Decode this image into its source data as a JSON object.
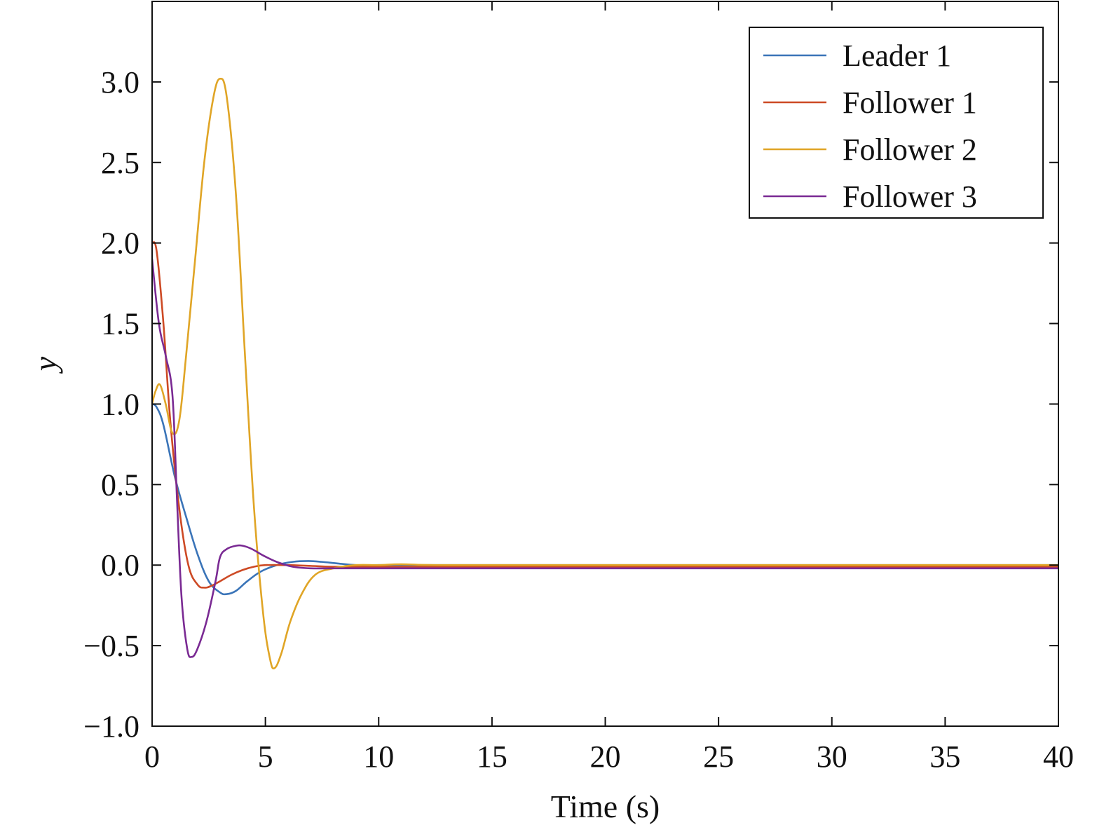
{
  "chart_data": {
    "type": "line",
    "title": "",
    "xlabel": "Time (s)",
    "ylabel": "y",
    "xlim": [
      0,
      40
    ],
    "ylim": [
      -1.0,
      3.5
    ],
    "xticks": [
      0,
      5,
      10,
      15,
      20,
      25,
      30,
      35,
      40
    ],
    "xtick_labels": [
      "0",
      "5",
      "10",
      "15",
      "20",
      "25",
      "30",
      "35",
      "40"
    ],
    "yticks": [
      -1.0,
      -0.5,
      0.0,
      0.5,
      1.0,
      1.5,
      2.0,
      2.5,
      3.0
    ],
    "ytick_labels": [
      "−1.0",
      "−0.5",
      "0.0",
      "0.5",
      "1.0",
      "1.5",
      "2.0",
      "2.5",
      "3.0"
    ],
    "grid": false,
    "legend_position": "top-right",
    "series": [
      {
        "name": "Leader 1",
        "color": "#3a74b8",
        "x": [
          0,
          0.2,
          0.5,
          1,
          1.5,
          2,
          2.5,
          3,
          3.3,
          3.7,
          4.2,
          4.8,
          5.5,
          6.2,
          6.9,
          7.5,
          8.2,
          9,
          10,
          12,
          15,
          20,
          30,
          40
        ],
        "y": [
          1.0,
          0.98,
          0.87,
          0.55,
          0.3,
          0.07,
          -0.1,
          -0.17,
          -0.18,
          -0.16,
          -0.1,
          -0.04,
          0.0,
          0.02,
          0.025,
          0.02,
          0.01,
          0.0,
          0.0,
          0.0,
          0.0,
          0.0,
          0.0,
          0.0
        ]
      },
      {
        "name": "Follower 1",
        "color": "#cd4a25",
        "x": [
          0,
          0.2,
          0.5,
          0.8,
          1.2,
          1.6,
          2.0,
          2.3,
          2.6,
          3.0,
          3.5,
          4.0,
          4.5,
          5.0,
          6.0,
          7.0,
          8.0,
          10,
          15,
          20,
          30,
          40
        ],
        "y": [
          2.0,
          1.95,
          1.5,
          0.9,
          0.35,
          0.0,
          -0.12,
          -0.14,
          -0.13,
          -0.1,
          -0.06,
          -0.03,
          -0.01,
          0.0,
          0.0,
          -0.005,
          -0.01,
          -0.01,
          -0.01,
          -0.01,
          -0.01,
          -0.01
        ]
      },
      {
        "name": "Follower 2",
        "color": "#e0a526",
        "x": [
          0,
          0.15,
          0.35,
          0.6,
          0.9,
          1.2,
          1.5,
          1.9,
          2.3,
          2.7,
          3.0,
          3.3,
          3.7,
          4.1,
          4.5,
          4.9,
          5.2,
          5.4,
          5.7,
          6.1,
          6.6,
          7.2,
          8,
          9,
          10,
          11,
          13,
          20,
          30,
          40
        ],
        "y": [
          1.0,
          1.08,
          1.12,
          1.0,
          0.82,
          0.9,
          1.3,
          1.9,
          2.5,
          2.9,
          3.02,
          2.9,
          2.3,
          1.3,
          0.35,
          -0.3,
          -0.58,
          -0.64,
          -0.55,
          -0.35,
          -0.18,
          -0.06,
          -0.02,
          0.0,
          0.0,
          0.005,
          0.0,
          0.0,
          0.0,
          0.0
        ]
      },
      {
        "name": "Follower 3",
        "color": "#7a2a93",
        "x": [
          0,
          0.3,
          0.6,
          0.9,
          1.1,
          1.3,
          1.55,
          1.75,
          2.0,
          2.4,
          2.8,
          3.0,
          3.3,
          3.7,
          4.0,
          4.4,
          4.9,
          5.5,
          6.2,
          7,
          8,
          10,
          15,
          20,
          30,
          40
        ],
        "y": [
          1.9,
          1.5,
          1.3,
          1.05,
          0.4,
          -0.2,
          -0.52,
          -0.57,
          -0.52,
          -0.35,
          -0.1,
          0.05,
          0.1,
          0.12,
          0.12,
          0.1,
          0.06,
          0.02,
          -0.01,
          -0.02,
          -0.02,
          -0.02,
          -0.02,
          -0.02,
          -0.02,
          -0.02
        ]
      }
    ]
  }
}
